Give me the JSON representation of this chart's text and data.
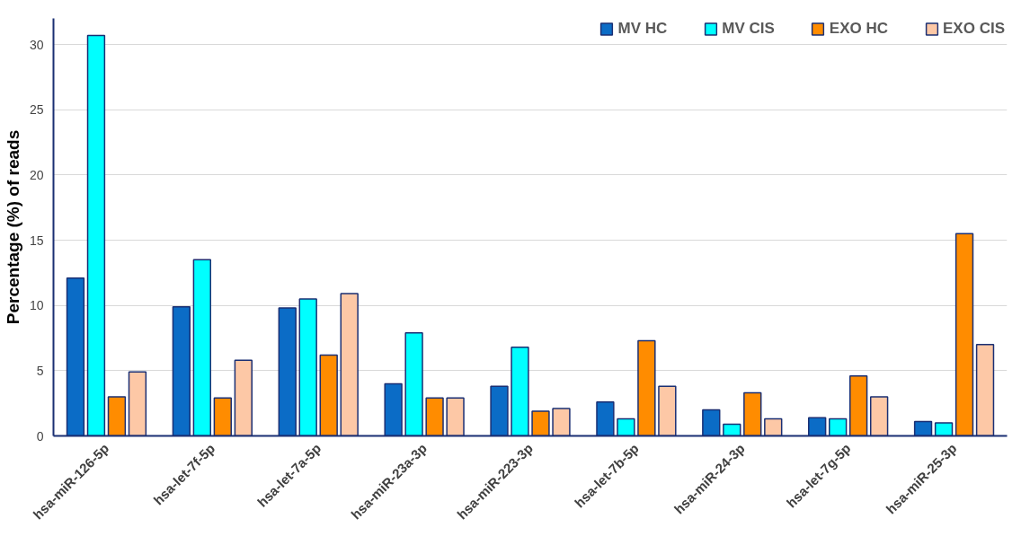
{
  "chart_data": {
    "type": "bar",
    "ylabel": "Percentage (%) of reads",
    "categories": [
      "hsa-miR-126-5p",
      "hsa-let-7f-5p",
      "hsa-let-7a-5p",
      "hsa-miR-23a-3p",
      "hsa-miR-223-3p",
      "hsa-let-7b-5p",
      "hsa-miR-24-3p",
      "hsa-let-7g-5p",
      "hsa-miR-25-3p"
    ],
    "series": [
      {
        "name": "MV HC",
        "color": "#0b6cc6",
        "values": [
          12.1,
          9.9,
          9.8,
          4.0,
          3.8,
          2.6,
          2.0,
          1.4,
          1.1
        ]
      },
      {
        "name": "MV CIS",
        "color": "#00ffff",
        "values": [
          30.7,
          13.5,
          10.5,
          7.9,
          6.8,
          1.3,
          0.9,
          1.3,
          1.0
        ]
      },
      {
        "name": "EXO HC",
        "color": "#ff8c00",
        "values": [
          3.0,
          2.9,
          6.2,
          2.9,
          1.9,
          7.3,
          3.3,
          4.6,
          15.5
        ]
      },
      {
        "name": "EXO CIS",
        "color": "#fdc8a6",
        "values": [
          4.9,
          5.8,
          10.9,
          2.9,
          2.1,
          3.8,
          1.3,
          3.0,
          7.0
        ]
      }
    ],
    "ylim": [
      0,
      32
    ],
    "yticks": [
      0,
      5,
      10,
      15,
      20,
      25,
      30
    ],
    "grid": "y",
    "legend": "top right"
  }
}
